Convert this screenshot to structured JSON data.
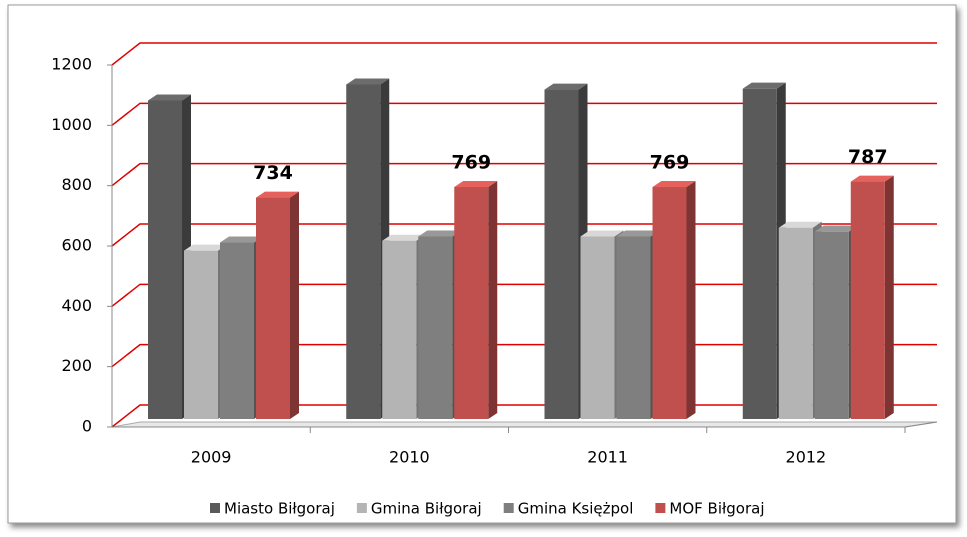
{
  "chart_data": {
    "type": "bar3d",
    "categories": [
      "2009",
      "2010",
      "2011",
      "2012"
    ],
    "series": [
      {
        "name": "Miasto Biłgoraj",
        "color": "#5a5a5a",
        "values": [
          1056,
          1109,
          1092,
          1095
        ]
      },
      {
        "name": "Gmina Biłgoraj",
        "color": "#b4b4b4",
        "values": [
          558,
          591,
          605,
          634
        ]
      },
      {
        "name": "Gmina Księżpol",
        "color": "#7f7f7f",
        "values": [
          585,
          605,
          605,
          621
        ]
      },
      {
        "name": "MOF Biłgoraj",
        "color": "#c0504d",
        "values": [
          734,
          769,
          769,
          787
        ],
        "show_labels": true
      }
    ],
    "ylim": [
      0,
      1200
    ],
    "yticks": [
      0,
      200,
      400,
      600,
      800,
      1000,
      1200
    ],
    "grid": true,
    "grid_color": "#e00000",
    "legend": "bottom"
  }
}
